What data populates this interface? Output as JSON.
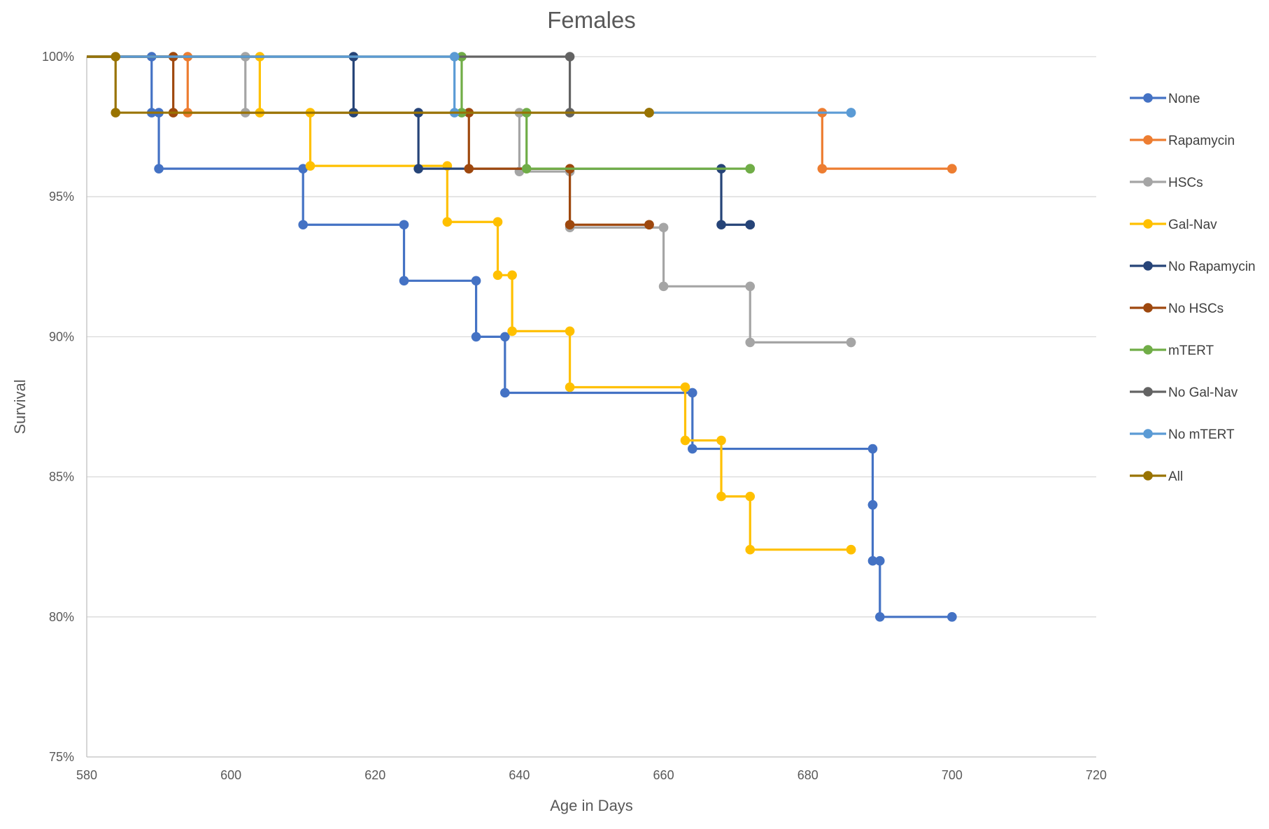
{
  "chart_data": {
    "type": "line",
    "step": true,
    "title": "Females",
    "xlabel": "Age in Days",
    "ylabel": "Survival",
    "xlim": [
      580,
      720
    ],
    "ylim": [
      75,
      100
    ],
    "x_ticks": [
      580,
      600,
      620,
      640,
      660,
      680,
      700,
      720
    ],
    "x_tick_labels": [
      "580",
      "600",
      "620",
      "640",
      "660",
      "680",
      "700",
      "720"
    ],
    "y_ticks": [
      75,
      80,
      85,
      90,
      95,
      100
    ],
    "y_tick_labels": [
      "75%",
      "80%",
      "85%",
      "90%",
      "95%",
      "100%"
    ],
    "grid": true,
    "legend_position": "right",
    "series": [
      {
        "name": "None",
        "color": "#4472C4",
        "x": [
          580,
          589,
          590,
          610,
          624,
          634,
          638,
          664,
          689,
          689,
          690,
          700
        ],
        "y": [
          100,
          98,
          96,
          94,
          92,
          90,
          88,
          86,
          84,
          82,
          80,
          80
        ]
      },
      {
        "name": "Rapamycin",
        "color": "#ED7D31",
        "x": [
          580,
          594,
          682,
          700
        ],
        "y": [
          100,
          98,
          96,
          96
        ]
      },
      {
        "name": "HSCs",
        "color": "#A5A5A5",
        "x": [
          580,
          602,
          640,
          647,
          660,
          672,
          686
        ],
        "y": [
          100,
          98,
          95.9,
          93.9,
          91.8,
          89.8,
          89.8
        ]
      },
      {
        "name": "Gal-Nav",
        "color": "#FFC000",
        "x": [
          580,
          604,
          611,
          630,
          637,
          639,
          647,
          663,
          668,
          672,
          686
        ],
        "y": [
          100,
          98,
          96.1,
          94.1,
          92.2,
          90.2,
          88.2,
          86.3,
          84.3,
          82.4,
          82.4
        ]
      },
      {
        "name": "No Rapamycin",
        "color": "#264478",
        "x": [
          580,
          617,
          626,
          668,
          672
        ],
        "y": [
          100,
          98,
          96,
          94,
          94
        ]
      },
      {
        "name": "No HSCs",
        "color": "#9E480E",
        "x": [
          580,
          592,
          633,
          647,
          658
        ],
        "y": [
          100,
          98,
          96,
          94,
          94
        ]
      },
      {
        "name": "mTERT",
        "color": "#70AD47",
        "x": [
          580,
          632,
          641,
          672
        ],
        "y": [
          100,
          98,
          96,
          96
        ]
      },
      {
        "name": "No Gal-Nav",
        "color": "#636363",
        "x": [
          580,
          647,
          658
        ],
        "y": [
          100,
          98,
          98
        ]
      },
      {
        "name": "No mTERT",
        "color": "#5B9BD5",
        "x": [
          580,
          631,
          686
        ],
        "y": [
          100,
          98,
          98
        ]
      },
      {
        "name": "All",
        "color": "#997300",
        "x": [
          580,
          584,
          658
        ],
        "y": [
          100,
          98,
          98
        ]
      }
    ]
  }
}
